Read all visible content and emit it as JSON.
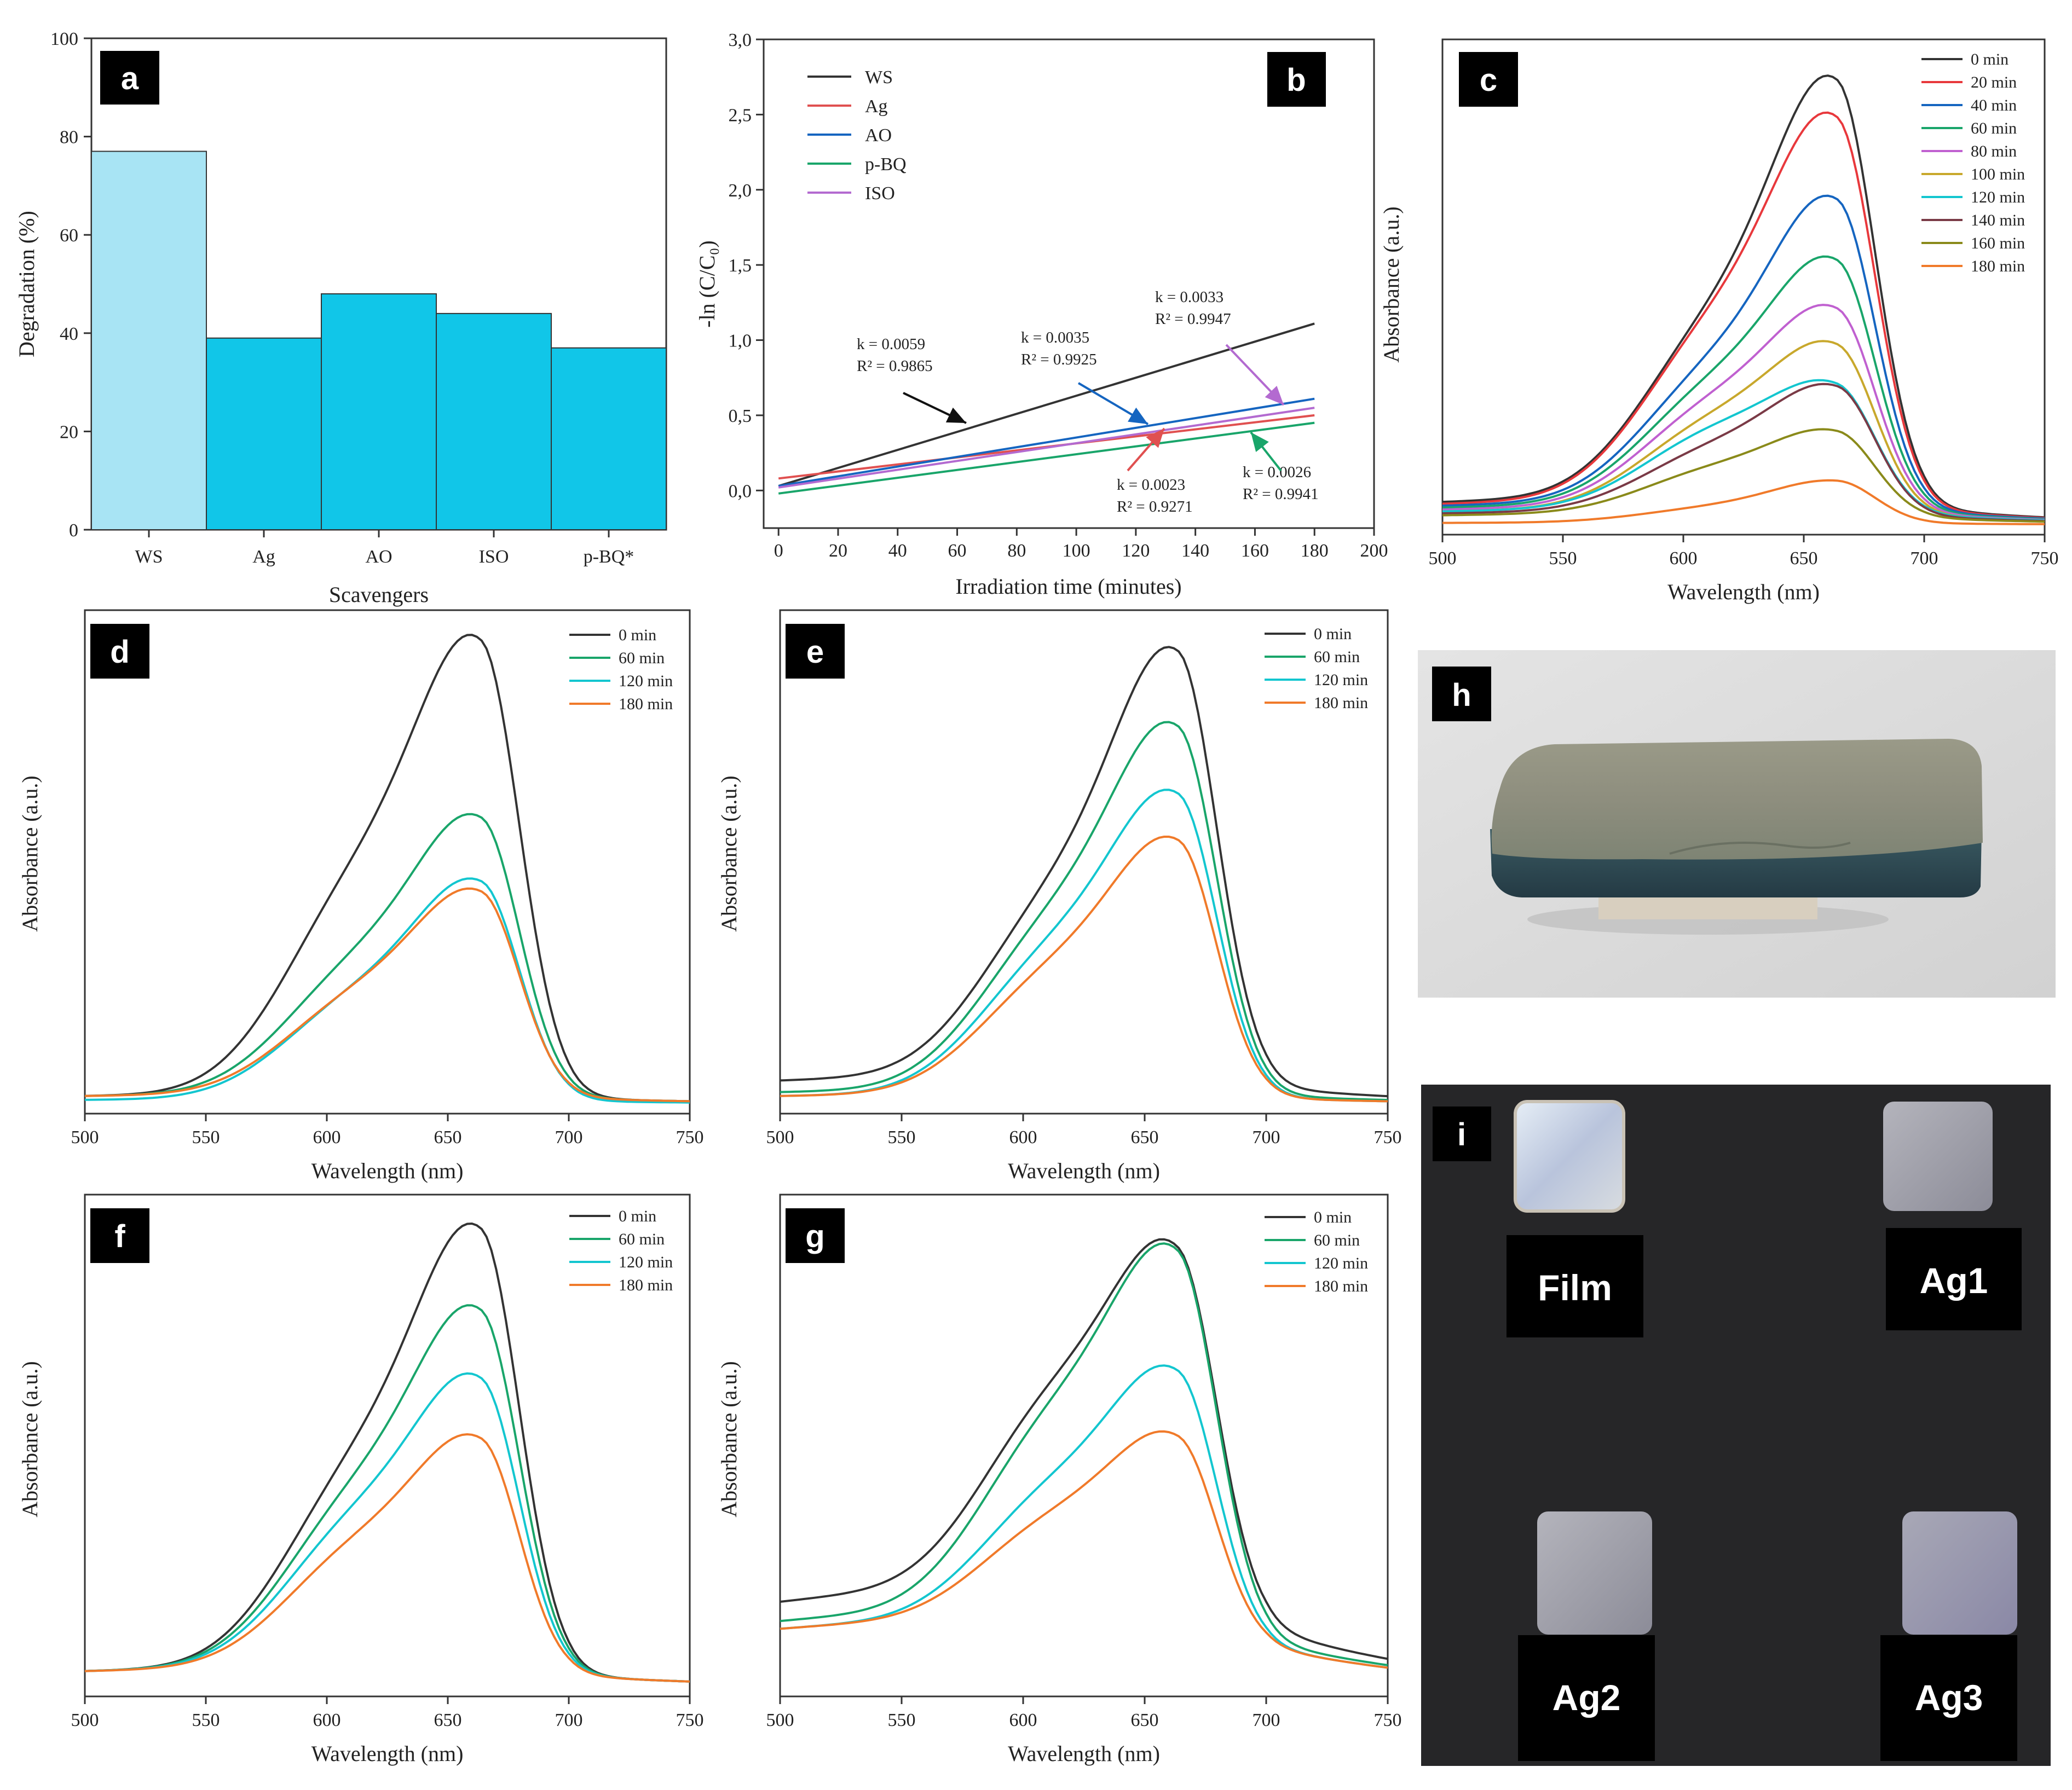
{
  "colors": {
    "0 min": "#333333",
    "20 min": "#e8383c",
    "40 min": "#1565c0",
    "60 min": "#19a56a",
    "80 min": "#c060d0",
    "100 min": "#c8a82c",
    "120 min": "#13c6cf",
    "140 min": "#7a3a46",
    "160 min": "#8a8a1a",
    "180 min": "#f07a2a",
    "bar_ws": "#a8e4f4",
    "bar": "#11c6e8",
    "WS": "#333333",
    "Ag": "#e05050",
    "AO": "#1565c0",
    "p-BQ": "#19a56a",
    "ISO": "#b36ad0"
  },
  "chart_data": [
    {
      "id": "a",
      "type": "bar",
      "panel_label": "a",
      "categories": [
        "WS",
        "Ag",
        "AO",
        "ISO",
        "p-BQ*"
      ],
      "values": [
        77,
        39,
        48,
        44,
        37
      ],
      "xlabel": "Scavengers",
      "ylabel": "Degradation (%)",
      "ylim": [
        0,
        100
      ],
      "yticks": [
        "0",
        "20",
        "40",
        "60",
        "80",
        "100"
      ]
    },
    {
      "id": "b",
      "type": "line",
      "panel_label": "b",
      "xlabel": "Irradiation time (minutes)",
      "ylabel": "-ln (C/C₀)",
      "xlim": [
        -5,
        200
      ],
      "ylim": [
        -0.25,
        3.0
      ],
      "xticks": [
        "0",
        "20",
        "40",
        "60",
        "80",
        "100",
        "120",
        "140",
        "160",
        "180",
        "200"
      ],
      "yticks": [
        "0,0",
        "0,5",
        "1,0",
        "1,5",
        "2,0",
        "2,5",
        "3,0"
      ],
      "series": [
        {
          "name": "WS",
          "x": [
            0,
            180
          ],
          "values": [
            0.03,
            1.11
          ]
        },
        {
          "name": "Ag",
          "x": [
            0,
            180
          ],
          "values": [
            0.08,
            0.5
          ]
        },
        {
          "name": "AO",
          "x": [
            0,
            180
          ],
          "values": [
            0.03,
            0.61
          ]
        },
        {
          "name": "p-BQ",
          "x": [
            0,
            180
          ],
          "values": [
            -0.02,
            0.45
          ]
        },
        {
          "name": "ISO",
          "x": [
            0,
            180
          ],
          "values": [
            0.02,
            0.55
          ]
        }
      ],
      "annotations": [
        {
          "k": "k = 0.0059",
          "r2": "R² = 0.9865",
          "series": "WS"
        },
        {
          "k": "k = 0.0035",
          "r2": "R² = 0.9925",
          "series": "AO"
        },
        {
          "k": "k = 0.0033",
          "r2": "R² = 0.9947",
          "series": "ISO"
        },
        {
          "k": "k = 0.0023",
          "r2": "R² = 0.9271",
          "series": "Ag"
        },
        {
          "k": "k = 0.0026",
          "r2": "R² = 0.9941",
          "series": "p-BQ"
        }
      ]
    },
    {
      "id": "c",
      "type": "line",
      "panel_label": "c",
      "xlabel": "Wavelength (nm)",
      "ylabel": "Absorbance (a.u.)",
      "xlim": [
        500,
        750
      ],
      "xticks": [
        "500",
        "550",
        "600",
        "650",
        "700",
        "750"
      ],
      "peak_nm": 664,
      "shoulder_nm": 612,
      "series": [
        {
          "name": "0 min",
          "peak": 1.0,
          "shoulder": 0.58,
          "base": 0.06
        },
        {
          "name": "20 min",
          "peak": 0.91,
          "shoulder": 0.57,
          "base": 0.055
        },
        {
          "name": "40 min",
          "peak": 0.73,
          "shoulder": 0.45,
          "base": 0.05
        },
        {
          "name": "60 min",
          "peak": 0.59,
          "shoulder": 0.4,
          "base": 0.045
        },
        {
          "name": "80 min",
          "peak": 0.48,
          "shoulder": 0.35,
          "base": 0.04
        },
        {
          "name": "100 min",
          "peak": 0.4,
          "shoulder": 0.3,
          "base": 0.035
        },
        {
          "name": "120 min",
          "peak": 0.31,
          "shoulder": 0.27,
          "base": 0.035
        },
        {
          "name": "140 min",
          "peak": 0.31,
          "shoulder": 0.22,
          "base": 0.03
        },
        {
          "name": "160 min",
          "peak": 0.21,
          "shoulder": 0.16,
          "base": 0.025
        },
        {
          "name": "180 min",
          "peak": 0.1,
          "shoulder": 0.05,
          "base": 0.005
        }
      ]
    },
    {
      "id": "d",
      "type": "line",
      "panel_label": "d",
      "xlabel": "Wavelength (nm)",
      "ylabel": "Absorbance (a.u.)",
      "xlim": [
        500,
        750
      ],
      "xticks": [
        "500",
        "550",
        "600",
        "650",
        "700",
        "750"
      ],
      "peak_nm": 664,
      "shoulder_nm": 612,
      "series": [
        {
          "name": "0 min",
          "peak": 1.0,
          "shoulder": 0.64,
          "base": 0.02
        },
        {
          "name": "60 min",
          "peak": 0.62,
          "shoulder": 0.4,
          "base": 0.02
        },
        {
          "name": "120 min",
          "peak": 0.48,
          "shoulder": 0.31,
          "base": 0.01
        },
        {
          "name": "180 min",
          "peak": 0.46,
          "shoulder": 0.31,
          "base": 0.02
        }
      ]
    },
    {
      "id": "e",
      "type": "line",
      "panel_label": "e",
      "xlabel": "Wavelength (nm)",
      "ylabel": "Absorbance (a.u.)",
      "xlim": [
        500,
        750
      ],
      "xticks": [
        "500",
        "550",
        "600",
        "650",
        "700",
        "750"
      ],
      "peak_nm": 664,
      "shoulder_nm": 612,
      "series": [
        {
          "name": "0 min",
          "peak": 1.0,
          "shoulder": 0.58,
          "base": 0.06
        },
        {
          "name": "60 min",
          "peak": 0.82,
          "shoulder": 0.52,
          "base": 0.03
        },
        {
          "name": "120 min",
          "peak": 0.67,
          "shoulder": 0.44,
          "base": 0.02
        },
        {
          "name": "180 min",
          "peak": 0.57,
          "shoulder": 0.38,
          "base": 0.02
        }
      ]
    },
    {
      "id": "f",
      "type": "line",
      "panel_label": "f",
      "xlabel": "Wavelength (nm)",
      "ylabel": "Absorbance (a.u.)",
      "xlim": [
        500,
        750
      ],
      "xticks": [
        "500",
        "550",
        "600",
        "650",
        "700",
        "750"
      ],
      "peak_nm": 664,
      "shoulder_nm": 612,
      "series": [
        {
          "name": "0 min",
          "peak": 1.0,
          "shoulder": 0.63,
          "base": 0.04
        },
        {
          "name": "60 min",
          "peak": 0.82,
          "shoulder": 0.55,
          "base": 0.04
        },
        {
          "name": "120 min",
          "peak": 0.67,
          "shoulder": 0.48,
          "base": 0.04
        },
        {
          "name": "180 min",
          "peak": 0.54,
          "shoulder": 0.4,
          "base": 0.04
        }
      ]
    },
    {
      "id": "g",
      "type": "line",
      "panel_label": "g",
      "xlabel": "Wavelength (nm)",
      "ylabel": "Absorbance (a.u.)",
      "xlim": [
        500,
        750
      ],
      "xticks": [
        "500",
        "550",
        "600",
        "650",
        "700",
        "750"
      ],
      "peak_nm": 664,
      "shoulder_nm": 612,
      "series": [
        {
          "name": "0 min",
          "peak": 1.0,
          "shoulder": 0.8,
          "base": 0.22
        },
        {
          "name": "60 min",
          "peak": 0.98,
          "shoulder": 0.75,
          "base": 0.17
        },
        {
          "name": "120 min",
          "peak": 0.72,
          "shoulder": 0.55,
          "base": 0.15
        },
        {
          "name": "180 min",
          "peak": 0.58,
          "shoulder": 0.46,
          "base": 0.15
        }
      ]
    }
  ],
  "photos": {
    "h": {
      "panel_label": "h"
    },
    "i": {
      "panel_label": "i",
      "samples": [
        "Film",
        "Ag1",
        "Ag2",
        "Ag3"
      ]
    }
  }
}
